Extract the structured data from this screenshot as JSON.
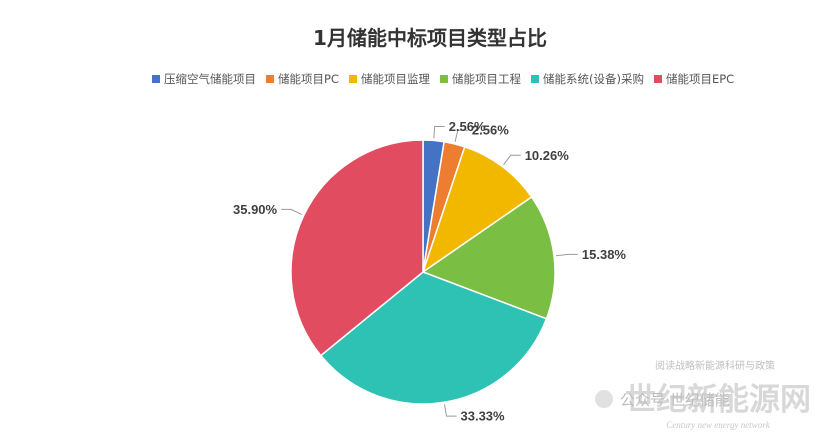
{
  "chart_data": {
    "type": "pie",
    "title": "1月储能中标项目类型占比",
    "legend_position": "top",
    "series": [
      {
        "name": "压缩空气储能项目",
        "value": 2.56,
        "label": "2.56%",
        "color": "#4472C4"
      },
      {
        "name": "储能项目PC",
        "value": 2.56,
        "label": "2.56%",
        "color": "#ED7D31"
      },
      {
        "name": "储能项目监理",
        "value": 10.26,
        "label": "10.26%",
        "color": "#F2B800"
      },
      {
        "name": "储能项目工程",
        "value": 15.38,
        "label": "15.38%",
        "color": "#7BBE44"
      },
      {
        "name": "储能系统(设备)采购",
        "value": 33.33,
        "label": "33.33%",
        "color": "#2EC2B4"
      },
      {
        "name": "储能项目EPC",
        "value": 35.9,
        "label": "35.90%",
        "color": "#E24C60"
      }
    ]
  },
  "watermark": {
    "top_line": "阅读战略新能源科研与政策",
    "main": "世纪新能源网",
    "account": "公众号·世纪储能",
    "english": "Century new energy network"
  }
}
